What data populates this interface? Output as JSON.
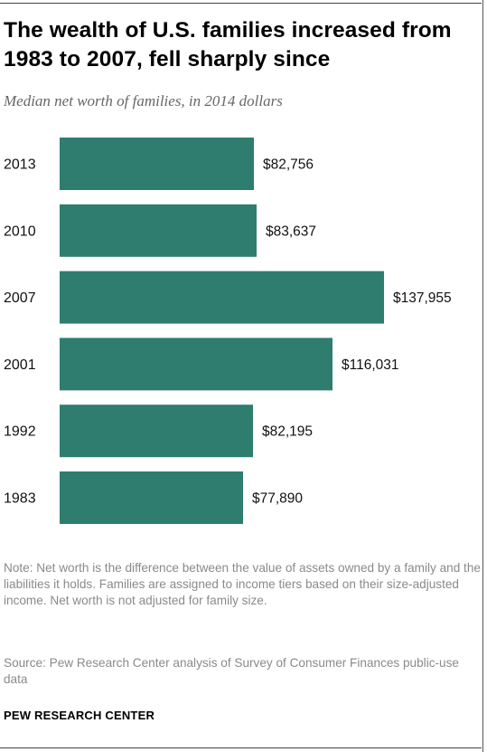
{
  "title": "The wealth of U.S. families increased from 1983 to 2007, fell sharply since",
  "subtitle": "Median net worth of families, in 2014 dollars",
  "chart_data": {
    "type": "bar",
    "orientation": "horizontal",
    "categories": [
      "2013",
      "2010",
      "2007",
      "2001",
      "1992",
      "1983"
    ],
    "values": [
      82756,
      83637,
      137955,
      116031,
      82195,
      77890
    ],
    "labels": [
      "$82,756",
      "$83,637",
      "$137,955",
      "$116,031",
      "$82,195",
      "$77,890"
    ],
    "bar_color": "#2e7d6e",
    "xlim": [
      0,
      137955
    ],
    "grid": false,
    "legend": "none"
  },
  "note": "Note: Net worth is the difference between the value of assets owned by a family and the liabilities it holds. Families are assigned to income tiers based on their size-adjusted income. Net worth is not adjusted for family size.",
  "source": "Source: Pew Research Center analysis of Survey of Consumer Finances public-use data",
  "brand": "PEW RESEARCH CENTER"
}
